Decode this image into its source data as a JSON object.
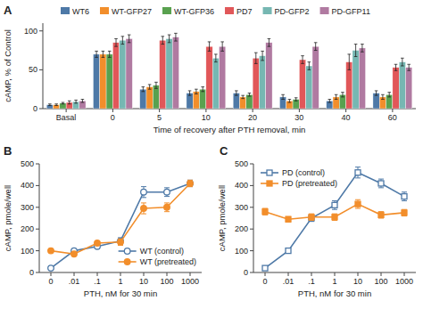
{
  "chart_data": [
    {
      "type": "bar",
      "title": "A",
      "xlabel": "Time of recovery after PTH removal, min",
      "ylabel": "cAMP, % of Control",
      "categories": [
        "Basal",
        "0",
        "5",
        "10",
        "20",
        "30",
        "40",
        "60"
      ],
      "series": [
        {
          "name": "WT6",
          "values": [
            5,
            70,
            25,
            20,
            20,
            15,
            10,
            20
          ],
          "errors": [
            1,
            4,
            3,
            3,
            3,
            3,
            2,
            3
          ]
        },
        {
          "name": "WT-GFP27",
          "values": [
            5,
            70,
            28,
            22,
            15,
            10,
            15,
            15
          ],
          "errors": [
            1,
            4,
            3,
            3,
            2,
            2,
            3,
            3
          ]
        },
        {
          "name": "WT-GFP36",
          "values": [
            7,
            70,
            30,
            25,
            18,
            12,
            18,
            18
          ],
          "errors": [
            1,
            4,
            4,
            3,
            2,
            2,
            3,
            3
          ]
        },
        {
          "name": "PD7",
          "values": [
            8,
            85,
            88,
            80,
            65,
            63,
            60,
            53
          ],
          "errors": [
            2,
            5,
            5,
            6,
            7,
            5,
            10,
            4
          ]
        },
        {
          "name": "PD-GFP2",
          "values": [
            9,
            88,
            90,
            65,
            68,
            55,
            75,
            60
          ],
          "errors": [
            2,
            5,
            5,
            5,
            6,
            5,
            8,
            5
          ]
        },
        {
          "name": "PD-GFP11",
          "values": [
            10,
            90,
            92,
            80,
            85,
            80,
            78,
            53
          ],
          "errors": [
            2,
            5,
            5,
            6,
            5,
            5,
            5,
            4
          ]
        }
      ],
      "ylim": [
        0,
        110
      ],
      "yticks": [
        0,
        50,
        100
      ],
      "legend": "top"
    },
    {
      "type": "line",
      "title": "B",
      "xlabel": "PTH, nM for 30 min",
      "ylabel": "cAMP, pmole/well",
      "categories": [
        "0",
        ".01",
        ".1",
        "1",
        "10",
        "100",
        "1000"
      ],
      "series": [
        {
          "name": "WT (control)",
          "marker": "open-circle",
          "values": [
            20,
            100,
            120,
            145,
            370,
            370,
            410
          ],
          "errors": [
            5,
            8,
            10,
            15,
            25,
            20,
            15
          ]
        },
        {
          "name": "WT (pretreated)",
          "marker": "circle",
          "values": [
            100,
            85,
            135,
            140,
            295,
            300,
            410
          ],
          "errors": [
            8,
            8,
            10,
            15,
            25,
            20,
            15
          ]
        }
      ],
      "ylim": [
        0,
        500
      ],
      "yticks": [
        0,
        100,
        200,
        300,
        400,
        500
      ],
      "legend": "lower right"
    },
    {
      "type": "line",
      "title": "C",
      "xlabel": "PTH, nM for 30 min",
      "ylabel": "cAMP, pmole/well",
      "categories": [
        "0",
        ".01",
        ".1",
        "1",
        "10",
        "100",
        "1000"
      ],
      "series": [
        {
          "name": "PD (control)",
          "marker": "open-square",
          "values": [
            20,
            100,
            250,
            310,
            460,
            410,
            350
          ],
          "errors": [
            5,
            10,
            15,
            20,
            25,
            20,
            20
          ]
        },
        {
          "name": "PD (pretreated)",
          "marker": "square",
          "values": [
            280,
            245,
            255,
            255,
            315,
            265,
            275
          ],
          "errors": [
            15,
            12,
            15,
            15,
            20,
            15,
            15
          ]
        }
      ],
      "ylim": [
        0,
        500
      ],
      "yticks": [
        0,
        100,
        200,
        300,
        400,
        500
      ],
      "legend": "upper left"
    }
  ]
}
